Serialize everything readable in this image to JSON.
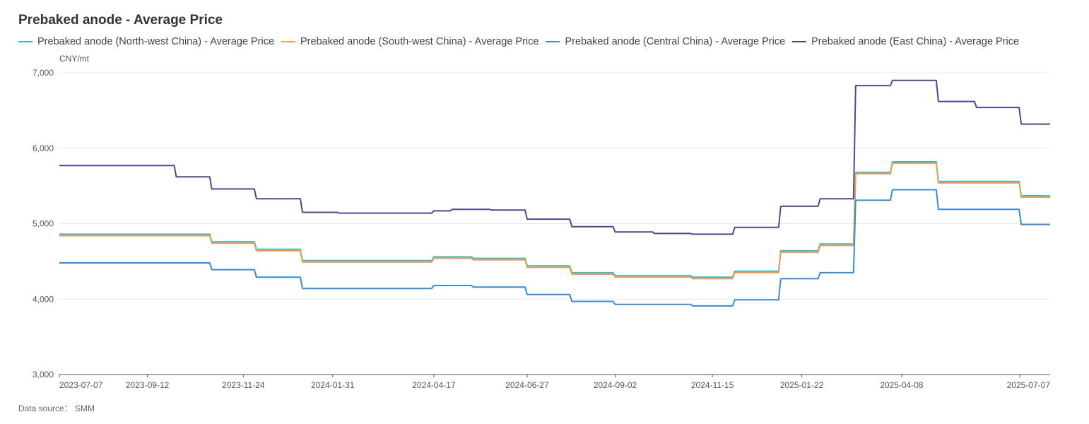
{
  "chart_data": {
    "type": "line",
    "title": "Prebaked anode - Average Price",
    "ylabel": "CNY/mt",
    "ylim": [
      3000,
      7000
    ],
    "yticks": [
      3000,
      4000,
      5000,
      6000,
      7000
    ],
    "ytick_labels": [
      "3,000",
      "4,000",
      "5,000",
      "6,000",
      "7,000"
    ],
    "xticks": [
      "2023-07-07",
      "2023-09-12",
      "2023-11-24",
      "2024-01-31",
      "2024-04-17",
      "2024-06-27",
      "2024-09-02",
      "2024-11-15",
      "2025-01-22",
      "2025-04-08",
      "2025-07-07"
    ],
    "xlim": [
      "2023-07-07",
      "2025-07-30"
    ],
    "grid": true,
    "legend_position": "top-left",
    "step": true,
    "series": [
      {
        "name": "Prebaked anode (North-west China) - Average Price",
        "color": "#3fb4c4",
        "points": [
          [
            "2023-07-07",
            4860
          ],
          [
            "2023-10-31",
            4760
          ],
          [
            "2023-12-04",
            4660
          ],
          [
            "2024-01-08",
            4510
          ],
          [
            "2024-04-17",
            4560
          ],
          [
            "2024-05-17",
            4540
          ],
          [
            "2024-06-27",
            4440
          ],
          [
            "2024-07-31",
            4350
          ],
          [
            "2024-09-02",
            4310
          ],
          [
            "2024-10-31",
            4290
          ],
          [
            "2024-12-02",
            4370
          ],
          [
            "2025-01-06",
            4640
          ],
          [
            "2025-02-05",
            4730
          ],
          [
            "2025-03-04",
            5680
          ],
          [
            "2025-04-01",
            5820
          ],
          [
            "2025-05-06",
            5560
          ],
          [
            "2025-07-08",
            5370
          ],
          [
            "2025-07-30",
            5370
          ]
        ]
      },
      {
        "name": "Prebaked anode (South-west China) - Average Price",
        "color": "#f0a050",
        "points": [
          [
            "2023-07-07",
            4840
          ],
          [
            "2023-10-31",
            4740
          ],
          [
            "2023-12-04",
            4640
          ],
          [
            "2024-01-08",
            4490
          ],
          [
            "2024-04-17",
            4540
          ],
          [
            "2024-05-17",
            4520
          ],
          [
            "2024-06-27",
            4420
          ],
          [
            "2024-07-31",
            4330
          ],
          [
            "2024-09-02",
            4290
          ],
          [
            "2024-10-31",
            4270
          ],
          [
            "2024-12-02",
            4350
          ],
          [
            "2025-01-06",
            4620
          ],
          [
            "2025-02-05",
            4710
          ],
          [
            "2025-03-04",
            5660
          ],
          [
            "2025-04-01",
            5800
          ],
          [
            "2025-05-06",
            5540
          ],
          [
            "2025-07-08",
            5350
          ],
          [
            "2025-07-30",
            5350
          ]
        ]
      },
      {
        "name": "Prebaked anode (Central China) - Average Price",
        "color": "#3c8ad0",
        "points": [
          [
            "2023-07-07",
            4480
          ],
          [
            "2023-10-31",
            4390
          ],
          [
            "2023-12-04",
            4290
          ],
          [
            "2024-01-08",
            4140
          ],
          [
            "2024-04-17",
            4180
          ],
          [
            "2024-05-17",
            4160
          ],
          [
            "2024-06-27",
            4060
          ],
          [
            "2024-07-31",
            3970
          ],
          [
            "2024-09-02",
            3930
          ],
          [
            "2024-10-31",
            3910
          ],
          [
            "2024-12-02",
            3990
          ],
          [
            "2025-01-06",
            4270
          ],
          [
            "2025-02-05",
            4350
          ],
          [
            "2025-03-04",
            5310
          ],
          [
            "2025-04-01",
            5450
          ],
          [
            "2025-05-06",
            5190
          ],
          [
            "2025-07-08",
            4990
          ],
          [
            "2025-07-30",
            4990
          ]
        ]
      },
      {
        "name": "Prebaked anode (East China) - Average Price",
        "color": "#4a4a8c",
        "points": [
          [
            "2023-07-07",
            5770
          ],
          [
            "2023-10-04",
            5620
          ],
          [
            "2023-10-31",
            5460
          ],
          [
            "2023-12-04",
            5330
          ],
          [
            "2024-01-08",
            5150
          ],
          [
            "2024-02-05",
            5140
          ],
          [
            "2024-04-17",
            5170
          ],
          [
            "2024-05-01",
            5190
          ],
          [
            "2024-05-31",
            5180
          ],
          [
            "2024-06-27",
            5060
          ],
          [
            "2024-07-31",
            4960
          ],
          [
            "2024-09-02",
            4890
          ],
          [
            "2024-10-02",
            4870
          ],
          [
            "2024-10-31",
            4860
          ],
          [
            "2024-12-02",
            4950
          ],
          [
            "2025-01-06",
            5230
          ],
          [
            "2025-02-05",
            5330
          ],
          [
            "2025-03-04",
            6830
          ],
          [
            "2025-04-01",
            6900
          ],
          [
            "2025-05-06",
            6620
          ],
          [
            "2025-06-04",
            6540
          ],
          [
            "2025-07-08",
            6320
          ],
          [
            "2025-07-30",
            6320
          ]
        ]
      }
    ]
  },
  "footer": {
    "source": "Data source： SMM"
  }
}
